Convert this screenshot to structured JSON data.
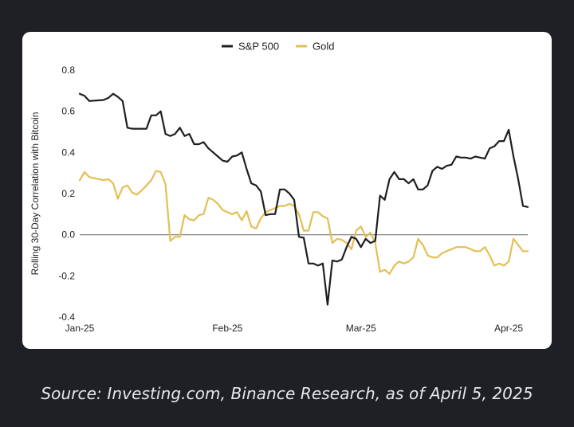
{
  "caption": "Source: Investing.com, Binance Research, as of April 5, 2025",
  "colors": {
    "sp500": "#1f1f1f",
    "gold": "#e3bf55",
    "zero_line": "#777777"
  },
  "chart_data": {
    "type": "line",
    "ylabel": "Rolling 30-Day Correlation with Bitcoin",
    "ylim": [
      -0.4,
      0.8
    ],
    "yticks": [
      {
        "value": 0.8,
        "label": "0.8"
      },
      {
        "value": 0.6,
        "label": "0.6"
      },
      {
        "value": 0.4,
        "label": "0.4"
      },
      {
        "value": 0.2,
        "label": "0.2"
      },
      {
        "value": 0.0,
        "label": "0.0"
      },
      {
        "value": -0.2,
        "label": "-0.2"
      },
      {
        "value": -0.4,
        "label": "-0.4"
      }
    ],
    "xticks": [
      {
        "date": "2025-01-01",
        "label": "Jan-25"
      },
      {
        "date": "2025-02-01",
        "label": "Feb-25"
      },
      {
        "date": "2025-03-01",
        "label": "Mar-25"
      },
      {
        "date": "2025-04-01",
        "label": "Apr-25"
      }
    ],
    "xlim": [
      "2025-01-01",
      "2025-04-05"
    ],
    "legend_position": "top-center",
    "grid": false,
    "series": [
      {
        "name": "S&P 500",
        "color_key": "sp500",
        "points": [
          [
            "2025-01-01",
            0.685
          ],
          [
            "2025-01-02",
            0.675
          ],
          [
            "2025-01-03",
            0.65
          ],
          [
            "2025-01-06",
            0.655
          ],
          [
            "2025-01-07",
            0.665
          ],
          [
            "2025-01-08",
            0.685
          ],
          [
            "2025-01-09",
            0.67
          ],
          [
            "2025-01-10",
            0.65
          ],
          [
            "2025-01-11",
            0.52
          ],
          [
            "2025-01-12",
            0.515
          ],
          [
            "2025-01-13",
            0.515
          ],
          [
            "2025-01-14",
            0.515
          ],
          [
            "2025-01-15",
            0.515
          ],
          [
            "2025-01-16",
            0.58
          ],
          [
            "2025-01-17",
            0.58
          ],
          [
            "2025-01-18",
            0.6
          ],
          [
            "2025-01-19",
            0.49
          ],
          [
            "2025-01-20",
            0.48
          ],
          [
            "2025-01-21",
            0.49
          ],
          [
            "2025-01-22",
            0.52
          ],
          [
            "2025-01-23",
            0.48
          ],
          [
            "2025-01-24",
            0.49
          ],
          [
            "2025-01-25",
            0.44
          ],
          [
            "2025-01-26",
            0.44
          ],
          [
            "2025-01-27",
            0.45
          ],
          [
            "2025-01-28",
            0.42
          ],
          [
            "2025-01-29",
            0.4
          ],
          [
            "2025-01-30",
            0.38
          ],
          [
            "2025-01-31",
            0.36
          ],
          [
            "2025-02-01",
            0.355
          ],
          [
            "2025-02-02",
            0.38
          ],
          [
            "2025-02-03",
            0.385
          ],
          [
            "2025-02-04",
            0.4
          ],
          [
            "2025-02-05",
            0.32
          ],
          [
            "2025-02-06",
            0.25
          ],
          [
            "2025-02-07",
            0.24
          ],
          [
            "2025-02-08",
            0.21
          ],
          [
            "2025-02-09",
            0.095
          ],
          [
            "2025-02-10",
            0.1
          ],
          [
            "2025-02-11",
            0.1
          ],
          [
            "2025-02-12",
            0.22
          ],
          [
            "2025-02-13",
            0.22
          ],
          [
            "2025-02-14",
            0.2
          ],
          [
            "2025-02-15",
            0.17
          ],
          [
            "2025-02-16",
            -0.01
          ],
          [
            "2025-02-17",
            -0.015
          ],
          [
            "2025-02-18",
            -0.14
          ],
          [
            "2025-02-19",
            -0.14
          ],
          [
            "2025-02-20",
            -0.15
          ],
          [
            "2025-02-21",
            -0.14
          ],
          [
            "2025-02-22",
            -0.34
          ],
          [
            "2025-02-23",
            -0.125
          ],
          [
            "2025-02-24",
            -0.13
          ],
          [
            "2025-02-25",
            -0.12
          ],
          [
            "2025-02-26",
            -0.06
          ],
          [
            "2025-02-27",
            -0.01
          ],
          [
            "2025-02-28",
            -0.02
          ],
          [
            "2025-03-01",
            -0.06
          ],
          [
            "2025-03-02",
            -0.02
          ],
          [
            "2025-03-03",
            -0.04
          ],
          [
            "2025-03-04",
            -0.03
          ],
          [
            "2025-03-05",
            0.19
          ],
          [
            "2025-03-06",
            0.17
          ],
          [
            "2025-03-07",
            0.27
          ],
          [
            "2025-03-08",
            0.305
          ],
          [
            "2025-03-09",
            0.27
          ],
          [
            "2025-03-10",
            0.27
          ],
          [
            "2025-03-11",
            0.25
          ],
          [
            "2025-03-12",
            0.27
          ],
          [
            "2025-03-13",
            0.22
          ],
          [
            "2025-03-14",
            0.22
          ],
          [
            "2025-03-15",
            0.24
          ],
          [
            "2025-03-16",
            0.31
          ],
          [
            "2025-03-17",
            0.33
          ],
          [
            "2025-03-18",
            0.32
          ],
          [
            "2025-03-19",
            0.335
          ],
          [
            "2025-03-20",
            0.34
          ],
          [
            "2025-03-21",
            0.38
          ],
          [
            "2025-03-22",
            0.375
          ],
          [
            "2025-03-23",
            0.375
          ],
          [
            "2025-03-24",
            0.37
          ],
          [
            "2025-03-25",
            0.38
          ],
          [
            "2025-03-26",
            0.375
          ],
          [
            "2025-03-27",
            0.37
          ],
          [
            "2025-03-28",
            0.42
          ],
          [
            "2025-03-29",
            0.43
          ],
          [
            "2025-03-30",
            0.455
          ],
          [
            "2025-03-31",
            0.455
          ],
          [
            "2025-04-01",
            0.51
          ],
          [
            "2025-04-02",
            0.38
          ],
          [
            "2025-04-03",
            0.27
          ],
          [
            "2025-04-04",
            0.14
          ],
          [
            "2025-04-05",
            0.135
          ]
        ]
      },
      {
        "name": "Gold",
        "color_key": "gold",
        "points": [
          [
            "2025-01-01",
            0.265
          ],
          [
            "2025-01-02",
            0.305
          ],
          [
            "2025-01-03",
            0.28
          ],
          [
            "2025-01-06",
            0.265
          ],
          [
            "2025-01-07",
            0.27
          ],
          [
            "2025-01-08",
            0.25
          ],
          [
            "2025-01-09",
            0.175
          ],
          [
            "2025-01-10",
            0.23
          ],
          [
            "2025-01-11",
            0.24
          ],
          [
            "2025-01-12",
            0.205
          ],
          [
            "2025-01-13",
            0.195
          ],
          [
            "2025-01-14",
            0.215
          ],
          [
            "2025-01-15",
            0.24
          ],
          [
            "2025-01-16",
            0.265
          ],
          [
            "2025-01-17",
            0.31
          ],
          [
            "2025-01-18",
            0.305
          ],
          [
            "2025-01-19",
            0.245
          ],
          [
            "2025-01-20",
            -0.03
          ],
          [
            "2025-01-21",
            -0.01
          ],
          [
            "2025-01-22",
            -0.01
          ],
          [
            "2025-01-23",
            0.095
          ],
          [
            "2025-01-24",
            0.075
          ],
          [
            "2025-01-25",
            0.07
          ],
          [
            "2025-01-26",
            0.095
          ],
          [
            "2025-01-27",
            0.1
          ],
          [
            "2025-01-28",
            0.18
          ],
          [
            "2025-01-29",
            0.17
          ],
          [
            "2025-01-30",
            0.15
          ],
          [
            "2025-01-31",
            0.12
          ],
          [
            "2025-02-01",
            0.11
          ],
          [
            "2025-02-02",
            0.1
          ],
          [
            "2025-02-03",
            0.11
          ],
          [
            "2025-02-04",
            0.07
          ],
          [
            "2025-02-05",
            0.115
          ],
          [
            "2025-02-06",
            0.04
          ],
          [
            "2025-02-07",
            0.03
          ],
          [
            "2025-02-08",
            0.08
          ],
          [
            "2025-02-09",
            0.11
          ],
          [
            "2025-02-10",
            0.12
          ],
          [
            "2025-02-11",
            0.13
          ],
          [
            "2025-02-12",
            0.14
          ],
          [
            "2025-02-13",
            0.14
          ],
          [
            "2025-02-14",
            0.15
          ],
          [
            "2025-02-15",
            0.14
          ],
          [
            "2025-02-16",
            0.1
          ],
          [
            "2025-02-17",
            0.02
          ],
          [
            "2025-02-18",
            0.02
          ],
          [
            "2025-02-19",
            0.11
          ],
          [
            "2025-02-20",
            0.11
          ],
          [
            "2025-02-21",
            0.09
          ],
          [
            "2025-02-22",
            0.08
          ],
          [
            "2025-02-23",
            -0.04
          ],
          [
            "2025-02-24",
            -0.02
          ],
          [
            "2025-02-25",
            -0.025
          ],
          [
            "2025-02-26",
            -0.04
          ],
          [
            "2025-02-27",
            -0.07
          ],
          [
            "2025-02-28",
            0.02
          ],
          [
            "2025-03-01",
            0.04
          ],
          [
            "2025-03-02",
            -0.01
          ],
          [
            "2025-03-03",
            0.01
          ],
          [
            "2025-03-04",
            -0.04
          ],
          [
            "2025-03-05",
            -0.18
          ],
          [
            "2025-03-06",
            -0.17
          ],
          [
            "2025-03-07",
            -0.19
          ],
          [
            "2025-03-08",
            -0.15
          ],
          [
            "2025-03-09",
            -0.13
          ],
          [
            "2025-03-10",
            -0.14
          ],
          [
            "2025-03-11",
            -0.13
          ],
          [
            "2025-03-12",
            -0.11
          ],
          [
            "2025-03-13",
            -0.02
          ],
          [
            "2025-03-14",
            -0.05
          ],
          [
            "2025-03-15",
            -0.1
          ],
          [
            "2025-03-16",
            -0.11
          ],
          [
            "2025-03-17",
            -0.11
          ],
          [
            "2025-03-18",
            -0.09
          ],
          [
            "2025-03-19",
            -0.08
          ],
          [
            "2025-03-20",
            -0.07
          ],
          [
            "2025-03-21",
            -0.06
          ],
          [
            "2025-03-22",
            -0.06
          ],
          [
            "2025-03-23",
            -0.06
          ],
          [
            "2025-03-24",
            -0.07
          ],
          [
            "2025-03-25",
            -0.08
          ],
          [
            "2025-03-26",
            -0.08
          ],
          [
            "2025-03-27",
            -0.06
          ],
          [
            "2025-03-28",
            -0.1
          ],
          [
            "2025-03-29",
            -0.15
          ],
          [
            "2025-03-30",
            -0.14
          ],
          [
            "2025-03-31",
            -0.15
          ],
          [
            "2025-04-01",
            -0.13
          ],
          [
            "2025-04-02",
            -0.02
          ],
          [
            "2025-04-03",
            -0.05
          ],
          [
            "2025-04-04",
            -0.08
          ],
          [
            "2025-04-05",
            -0.08
          ]
        ]
      }
    ]
  }
}
